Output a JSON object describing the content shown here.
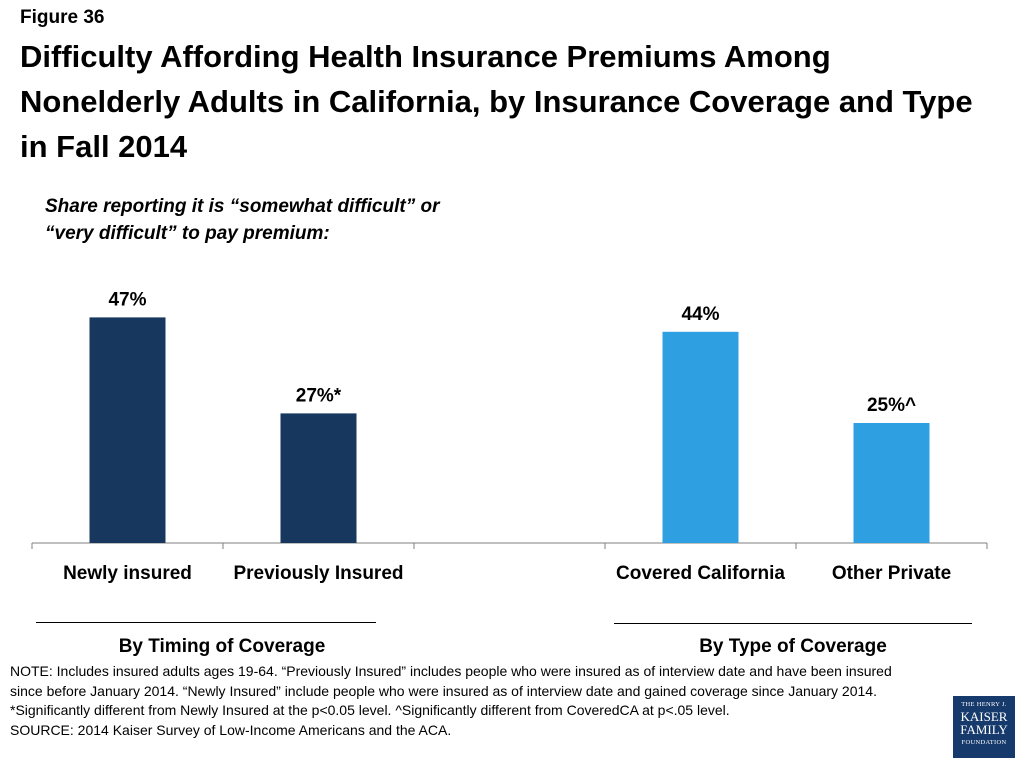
{
  "figure_label": "Figure 36",
  "title": "Difficulty Affording Health Insurance Premiums Among Nonelderly Adults in California, by Insurance Coverage and Type in Fall 2014",
  "subtitle": "Share reporting it is “somewhat difficult” or “very difficult” to pay premium:",
  "chart_data": {
    "type": "bar",
    "categories": [
      "Newly insured",
      "Previously Insured",
      "",
      "Covered California",
      "Other Private"
    ],
    "values": [
      47,
      27,
      null,
      44,
      25
    ],
    "data_labels": [
      "47%",
      "27%*",
      "",
      "44%",
      "25%^"
    ],
    "bar_colors": [
      "#17375e",
      "#17375e",
      null,
      "#2e9fe0",
      "#2e9fe0"
    ],
    "ylim": [
      0,
      100
    ],
    "grid": false,
    "groups": [
      {
        "label": "By Timing of Coverage",
        "categories": [
          "Newly insured",
          "Previously Insured"
        ]
      },
      {
        "label": "By Type of Coverage",
        "categories": [
          "Covered California",
          "Other Private"
        ]
      }
    ]
  },
  "notes": [
    "NOTE: Includes insured adults ages 19-64. “Previously Insured” includes people who were insured as of interview date and have been insured since before January 2014. “Newly Insured” include people who were insured as of interview date and gained coverage since January 2014.",
    "*Significantly different from Newly Insured at the p<0.05 level. ^Significantly different from CoveredCA at p<.05 level.",
    "SOURCE: 2014 Kaiser Survey of Low-Income Americans and the ACA."
  ],
  "logo": {
    "line1": "THE HENRY J.",
    "line2": "KAISER",
    "line3": "FAMILY",
    "line4": "FOUNDATION"
  }
}
